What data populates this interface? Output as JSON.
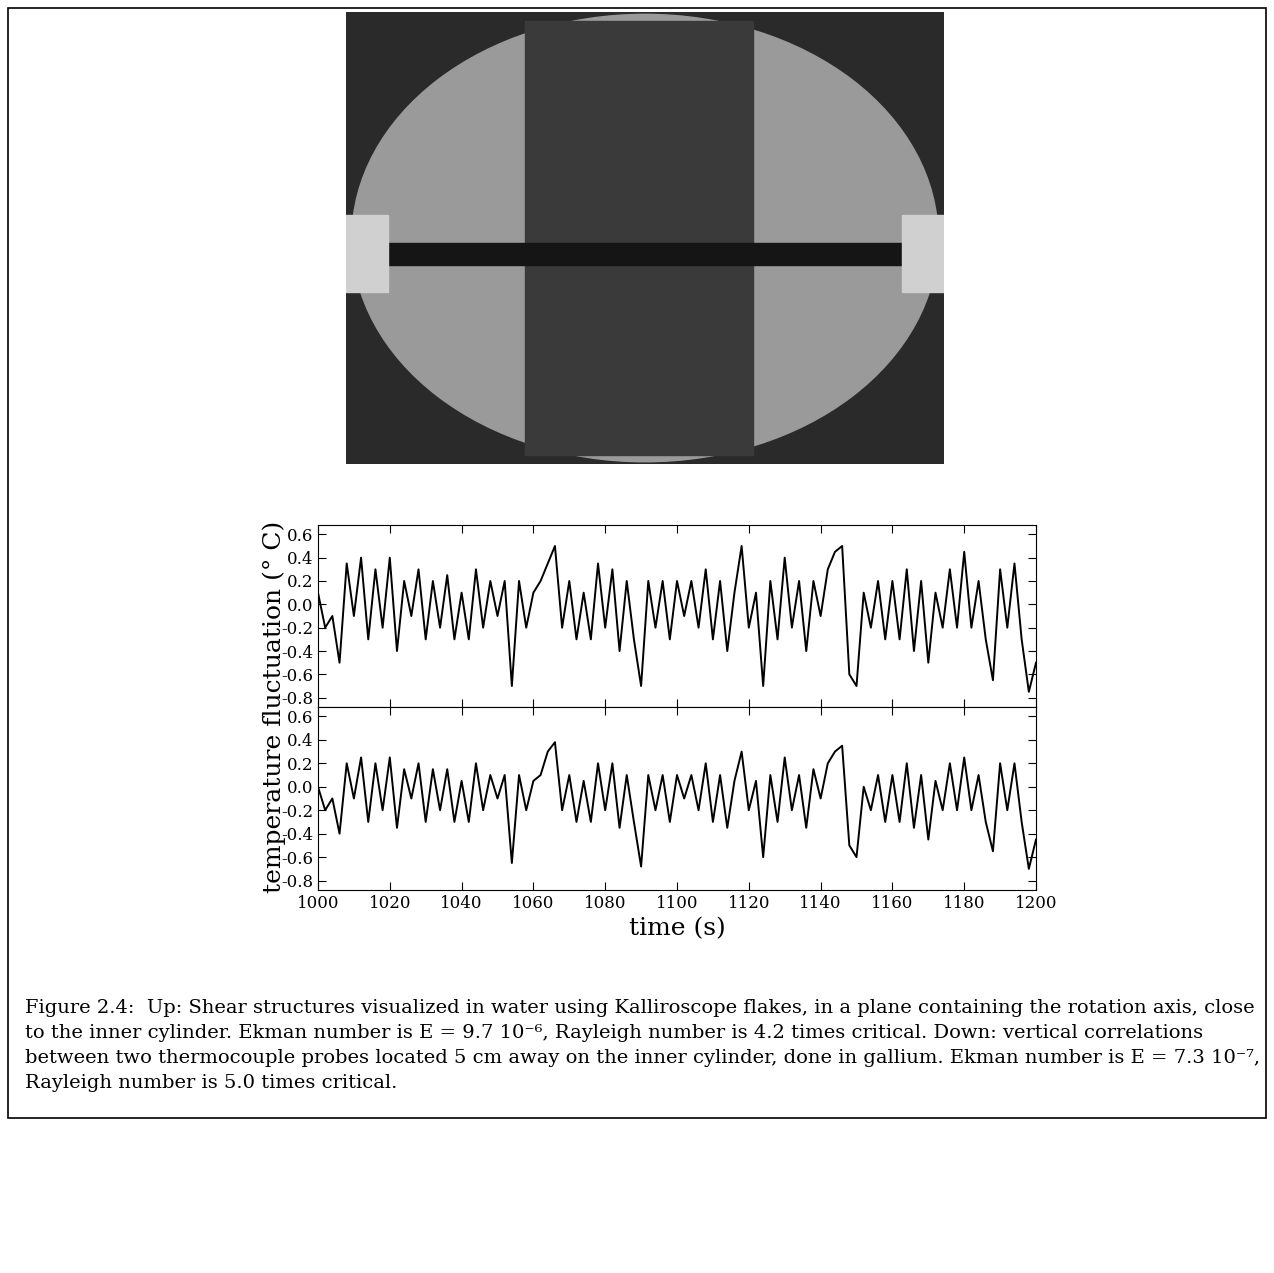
{
  "chart_data": [
    {
      "type": "line",
      "color": "#000000",
      "tick_labels": "y",
      "x": [
        1000,
        1002,
        1004,
        1006,
        1008,
        1010,
        1012,
        1014,
        1016,
        1018,
        1020,
        1022,
        1024,
        1026,
        1028,
        1030,
        1032,
        1034,
        1036,
        1038,
        1040,
        1042,
        1044,
        1046,
        1048,
        1050,
        1052,
        1054,
        1056,
        1058,
        1060,
        1062,
        1064,
        1066,
        1068,
        1070,
        1072,
        1074,
        1076,
        1078,
        1080,
        1082,
        1084,
        1086,
        1088,
        1090,
        1092,
        1094,
        1096,
        1098,
        1100,
        1102,
        1104,
        1106,
        1108,
        1110,
        1112,
        1114,
        1116,
        1118,
        1120,
        1122,
        1124,
        1126,
        1128,
        1130,
        1132,
        1134,
        1136,
        1138,
        1140,
        1142,
        1144,
        1146,
        1148,
        1150,
        1152,
        1154,
        1156,
        1158,
        1160,
        1162,
        1164,
        1166,
        1168,
        1170,
        1172,
        1174,
        1176,
        1178,
        1180,
        1182,
        1184,
        1186,
        1188,
        1190,
        1192,
        1194,
        1196,
        1198,
        1200
      ],
      "values": [
        0.1,
        -0.2,
        -0.1,
        -0.5,
        0.35,
        -0.1,
        0.4,
        -0.3,
        0.3,
        -0.2,
        0.4,
        -0.4,
        0.2,
        -0.1,
        0.3,
        -0.3,
        0.2,
        -0.2,
        0.25,
        -0.3,
        0.1,
        -0.3,
        0.3,
        -0.2,
        0.2,
        -0.1,
        0.2,
        -0.7,
        0.2,
        -0.2,
        0.1,
        0.2,
        0.35,
        0.5,
        -0.2,
        0.2,
        -0.3,
        0.1,
        -0.3,
        0.35,
        -0.2,
        0.3,
        -0.4,
        0.2,
        -0.3,
        -0.7,
        0.2,
        -0.2,
        0.2,
        -0.3,
        0.2,
        -0.1,
        0.2,
        -0.2,
        0.3,
        -0.3,
        0.2,
        -0.4,
        0.1,
        0.5,
        -0.2,
        0.1,
        -0.7,
        0.2,
        -0.3,
        0.4,
        -0.2,
        0.2,
        -0.4,
        0.2,
        -0.1,
        0.3,
        0.45,
        0.5,
        -0.6,
        -0.7,
        0.1,
        -0.2,
        0.2,
        -0.3,
        0.2,
        -0.3,
        0.3,
        -0.4,
        0.2,
        -0.5,
        0.1,
        -0.2,
        0.3,
        -0.2,
        0.45,
        -0.2,
        0.2,
        -0.3,
        -0.65,
        0.3,
        -0.2,
        0.35,
        -0.3,
        -0.75,
        -0.5
      ],
      "xlim": [
        1000,
        1200
      ],
      "xticks": [
        1000,
        1020,
        1040,
        1060,
        1080,
        1100,
        1120,
        1140,
        1160,
        1180,
        1200
      ],
      "ylim": [
        -0.88,
        0.68
      ],
      "yticks": [
        -0.8,
        -0.6,
        -0.4,
        -0.2,
        {
          "value": 0,
          "label": "0.0"
        },
        0.2,
        0.4,
        0.6
      ]
    },
    {
      "type": "line",
      "color": "#000000",
      "x_label": "time (s)",
      "x": [
        1000,
        1002,
        1004,
        1006,
        1008,
        1010,
        1012,
        1014,
        1016,
        1018,
        1020,
        1022,
        1024,
        1026,
        1028,
        1030,
        1032,
        1034,
        1036,
        1038,
        1040,
        1042,
        1044,
        1046,
        1048,
        1050,
        1052,
        1054,
        1056,
        1058,
        1060,
        1062,
        1064,
        1066,
        1068,
        1070,
        1072,
        1074,
        1076,
        1078,
        1080,
        1082,
        1084,
        1086,
        1088,
        1090,
        1092,
        1094,
        1096,
        1098,
        1100,
        1102,
        1104,
        1106,
        1108,
        1110,
        1112,
        1114,
        1116,
        1118,
        1120,
        1122,
        1124,
        1126,
        1128,
        1130,
        1132,
        1134,
        1136,
        1138,
        1140,
        1142,
        1144,
        1146,
        1148,
        1150,
        1152,
        1154,
        1156,
        1158,
        1160,
        1162,
        1164,
        1166,
        1168,
        1170,
        1172,
        1174,
        1176,
        1178,
        1180,
        1182,
        1184,
        1186,
        1188,
        1190,
        1192,
        1194,
        1196,
        1198,
        1200
      ],
      "values": [
        0.0,
        -0.2,
        -0.1,
        -0.4,
        0.2,
        -0.1,
        0.25,
        -0.3,
        0.2,
        -0.2,
        0.25,
        -0.35,
        0.15,
        -0.1,
        0.2,
        -0.3,
        0.15,
        -0.2,
        0.15,
        -0.3,
        0.05,
        -0.3,
        0.2,
        -0.2,
        0.1,
        -0.1,
        0.1,
        -0.65,
        0.1,
        -0.2,
        0.05,
        0.1,
        0.3,
        0.38,
        -0.2,
        0.1,
        -0.3,
        0.05,
        -0.3,
        0.2,
        -0.2,
        0.2,
        -0.35,
        0.1,
        -0.3,
        -0.68,
        0.1,
        -0.2,
        0.1,
        -0.3,
        0.1,
        -0.1,
        0.1,
        -0.2,
        0.2,
        -0.3,
        0.1,
        -0.35,
        0.05,
        0.3,
        -0.2,
        0.05,
        -0.6,
        0.1,
        -0.3,
        0.25,
        -0.2,
        0.1,
        -0.35,
        0.15,
        -0.1,
        0.2,
        0.3,
        0.35,
        -0.5,
        -0.6,
        0.0,
        -0.2,
        0.1,
        -0.3,
        0.1,
        -0.3,
        0.2,
        -0.35,
        0.1,
        -0.45,
        0.05,
        -0.2,
        0.2,
        -0.2,
        0.25,
        -0.2,
        0.1,
        -0.3,
        -0.55,
        0.2,
        -0.2,
        0.2,
        -0.3,
        -0.7,
        -0.45
      ],
      "xlim": [
        1000,
        1200
      ],
      "xticks": [
        1000,
        1020,
        1040,
        1060,
        1080,
        1100,
        1120,
        1140,
        1160,
        1180,
        1200
      ],
      "ylim": [
        -0.88,
        0.68
      ],
      "yticks": [
        -0.8,
        -0.6,
        -0.4,
        -0.2,
        {
          "value": 0,
          "label": "0.0"
        },
        0.2,
        0.4,
        0.6
      ]
    }
  ],
  "y_label": "temperature fluctuation (° C)",
  "caption": "Figure 2.4:  Up: Shear structures visualized in water using Kalliroscope flakes, in a plane containing the rotation axis, close to the inner cylinder. Ekman number is E = 9.7 10⁻⁶, Rayleigh number is 4.2 times critical. Down: vertical correlations between two thermocouple probes located 5 cm away on the inner cylinder, done in gallium. Ekman number is E = 7.3 10⁻⁷, Rayleigh number is 5.0 times critical."
}
